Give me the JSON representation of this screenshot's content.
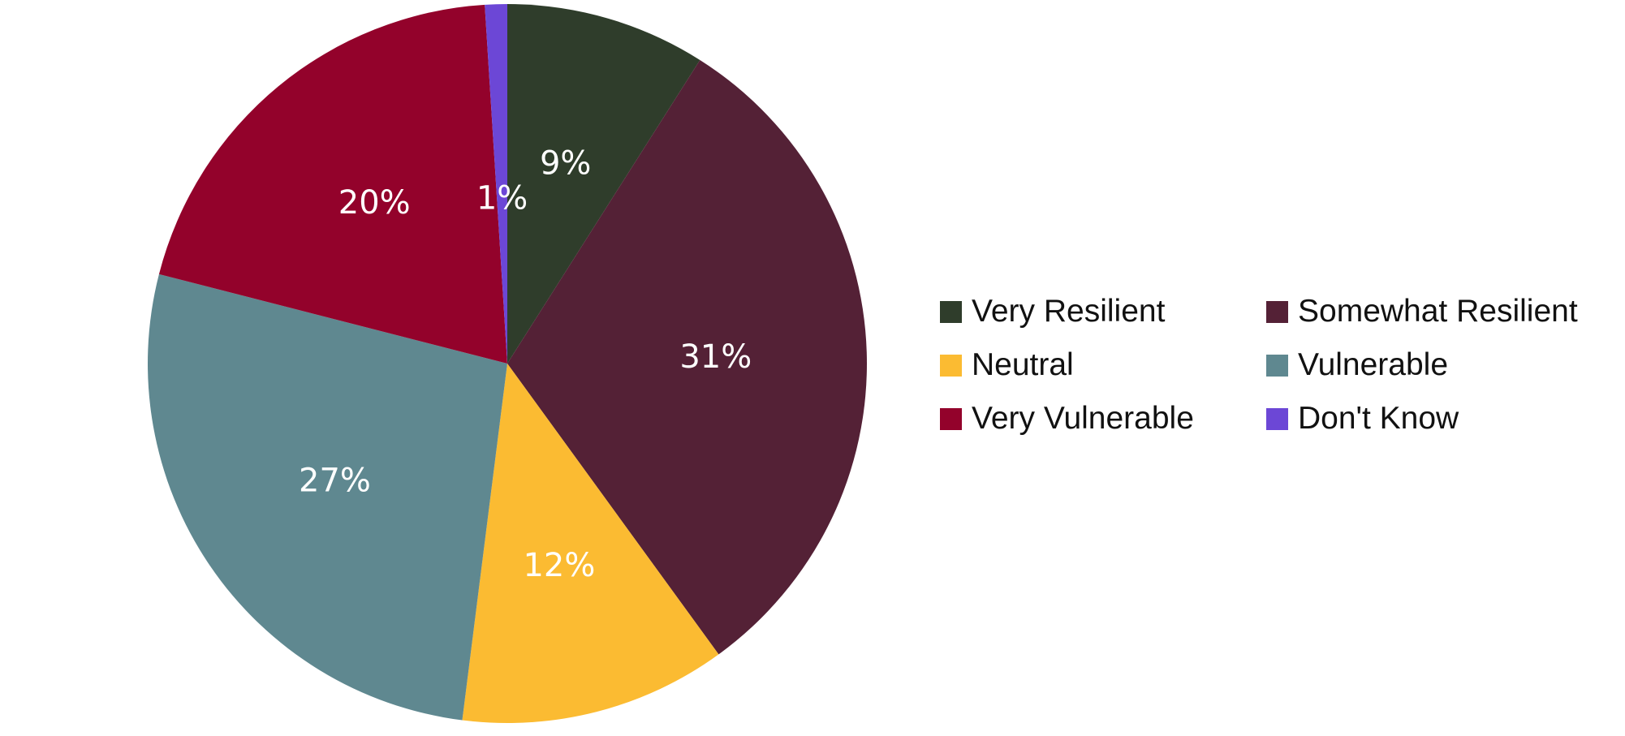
{
  "chart_data": {
    "type": "pie",
    "title": "",
    "start_angle_deg": 0,
    "direction": "clockwise",
    "slices": [
      {
        "label": "Very Resilient",
        "value": 9,
        "display": "9%",
        "color": "#2f3d2b"
      },
      {
        "label": "Somewhat Resilient",
        "value": 31,
        "display": "31%",
        "color": "#542136"
      },
      {
        "label": "Neutral",
        "value": 12,
        "display": "12%",
        "color": "#fbbb32"
      },
      {
        "label": "Vulnerable",
        "value": 27,
        "display": "27%",
        "color": "#5f8890"
      },
      {
        "label": "Very Vulnerable",
        "value": 20,
        "display": "20%",
        "color": "#93022b"
      },
      {
        "label": "Don't Know",
        "value": 1,
        "display": "1%",
        "color": "#6c47d6"
      }
    ],
    "legend_position": "right"
  },
  "legend": {
    "items": [
      {
        "label": "Very Resilient",
        "color": "#2f3d2b"
      },
      {
        "label": "Somewhat Resilient",
        "color": "#542136"
      },
      {
        "label": "Neutral",
        "color": "#fbbb32"
      },
      {
        "label": "Vulnerable",
        "color": "#5f8890"
      },
      {
        "label": "Very Vulnerable",
        "color": "#93022b"
      },
      {
        "label": "Don't Know",
        "color": "#6c47d6"
      }
    ]
  }
}
